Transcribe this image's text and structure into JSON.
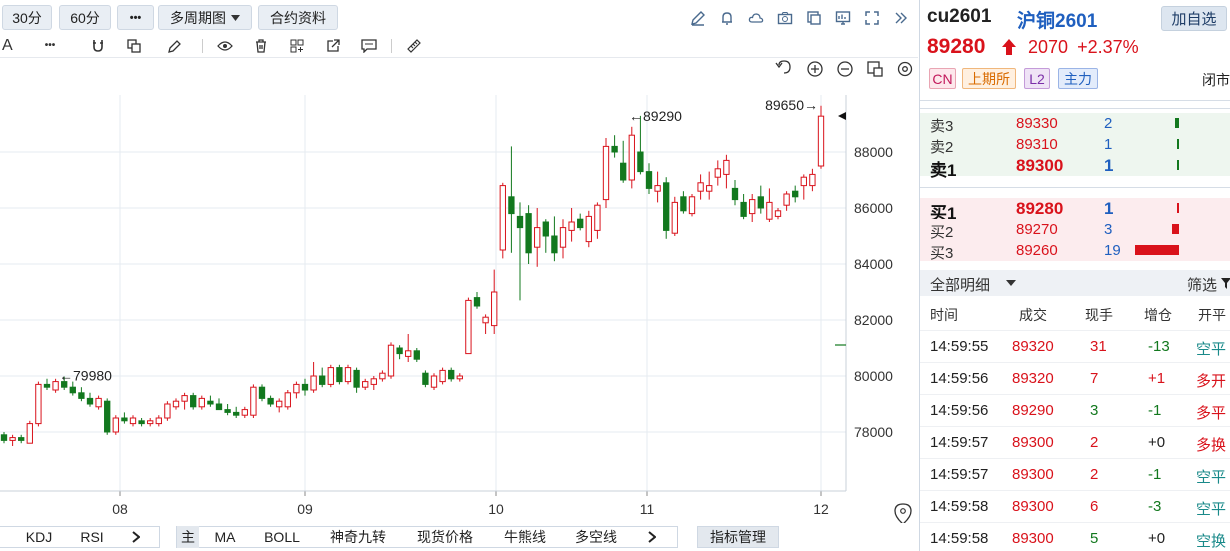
{
  "toolbar": {
    "period_30": "30分",
    "period_60": "60分",
    "more": "•••",
    "multi_period": "多周期图",
    "contract_info": "合约资料"
  },
  "chart": {
    "y_ticks": [
      "88000",
      "86000",
      "84000",
      "82000",
      "80000",
      "78000"
    ],
    "x_ticks": [
      "08",
      "09",
      "10",
      "11",
      "12"
    ],
    "annotations": {
      "high_left": "←79980",
      "high_mid": "←89290",
      "high_right": "89650→"
    }
  },
  "chart_data": {
    "type": "candlestick",
    "x_labels": [
      "08",
      "09",
      "10",
      "11",
      "12"
    ],
    "y_ticks": [
      78000,
      80000,
      82000,
      84000,
      86000,
      88000
    ],
    "ylim": [
      76500,
      90300
    ],
    "annotations": [
      {
        "text": "←79980",
        "value": 79980
      },
      {
        "text": "←89290",
        "value": 89290
      },
      {
        "text": "89650→",
        "value": 89650
      }
    ],
    "candles": [
      {
        "o": 77900,
        "h": 78000,
        "l": 77600,
        "c": 77700
      },
      {
        "o": 77700,
        "h": 77900,
        "l": 77500,
        "c": 77800
      },
      {
        "o": 77800,
        "h": 77900,
        "l": 77600,
        "c": 77700
      },
      {
        "o": 77600,
        "h": 78400,
        "l": 77600,
        "c": 78300
      },
      {
        "o": 78300,
        "h": 79800,
        "l": 78200,
        "c": 79700
      },
      {
        "o": 79700,
        "h": 79900,
        "l": 79500,
        "c": 79600
      },
      {
        "o": 79500,
        "h": 79900,
        "l": 79400,
        "c": 79800
      },
      {
        "o": 79800,
        "h": 79980,
        "l": 79500,
        "c": 79600
      },
      {
        "o": 79600,
        "h": 79800,
        "l": 79300,
        "c": 79400
      },
      {
        "o": 79400,
        "h": 79600,
        "l": 79100,
        "c": 79200
      },
      {
        "o": 79200,
        "h": 79400,
        "l": 78900,
        "c": 79000
      },
      {
        "o": 78900,
        "h": 79300,
        "l": 78800,
        "c": 79200
      },
      {
        "o": 79100,
        "h": 79200,
        "l": 77900,
        "c": 78000
      },
      {
        "o": 78000,
        "h": 78600,
        "l": 77900,
        "c": 78500
      },
      {
        "o": 78500,
        "h": 78700,
        "l": 78300,
        "c": 78400
      },
      {
        "o": 78300,
        "h": 78600,
        "l": 78200,
        "c": 78500
      },
      {
        "o": 78400,
        "h": 78500,
        "l": 78200,
        "c": 78300
      },
      {
        "o": 78300,
        "h": 78500,
        "l": 78200,
        "c": 78400
      },
      {
        "o": 78300,
        "h": 78600,
        "l": 78200,
        "c": 78500
      },
      {
        "o": 78500,
        "h": 79100,
        "l": 78400,
        "c": 79000
      },
      {
        "o": 78900,
        "h": 79200,
        "l": 78800,
        "c": 79100
      },
      {
        "o": 79100,
        "h": 79400,
        "l": 78800,
        "c": 79300
      },
      {
        "o": 79300,
        "h": 79400,
        "l": 78800,
        "c": 78900
      },
      {
        "o": 78900,
        "h": 79300,
        "l": 78800,
        "c": 79200
      },
      {
        "o": 79100,
        "h": 79300,
        "l": 78900,
        "c": 79000
      },
      {
        "o": 79000,
        "h": 79200,
        "l": 78800,
        "c": 78800
      },
      {
        "o": 78800,
        "h": 79000,
        "l": 78600,
        "c": 78700
      },
      {
        "o": 78700,
        "h": 78900,
        "l": 78500,
        "c": 78600
      },
      {
        "o": 78600,
        "h": 78900,
        "l": 78500,
        "c": 78800
      },
      {
        "o": 78600,
        "h": 79700,
        "l": 78500,
        "c": 79600
      },
      {
        "o": 79600,
        "h": 79700,
        "l": 79100,
        "c": 79200
      },
      {
        "o": 79200,
        "h": 79300,
        "l": 78900,
        "c": 79000
      },
      {
        "o": 78900,
        "h": 79200,
        "l": 78700,
        "c": 79100
      },
      {
        "o": 78900,
        "h": 79500,
        "l": 78800,
        "c": 79400
      },
      {
        "o": 79400,
        "h": 79800,
        "l": 79200,
        "c": 79700
      },
      {
        "o": 79700,
        "h": 79900,
        "l": 79300,
        "c": 79500
      },
      {
        "o": 79500,
        "h": 80500,
        "l": 79400,
        "c": 80000
      },
      {
        "o": 80000,
        "h": 80300,
        "l": 79600,
        "c": 79700
      },
      {
        "o": 79700,
        "h": 80400,
        "l": 79600,
        "c": 80300
      },
      {
        "o": 80300,
        "h": 80400,
        "l": 79700,
        "c": 79800
      },
      {
        "o": 79800,
        "h": 80400,
        "l": 79700,
        "c": 80300
      },
      {
        "o": 80200,
        "h": 80300,
        "l": 79400,
        "c": 79600
      },
      {
        "o": 79600,
        "h": 79900,
        "l": 79500,
        "c": 79800
      },
      {
        "o": 79700,
        "h": 80000,
        "l": 79500,
        "c": 79900
      },
      {
        "o": 79900,
        "h": 80200,
        "l": 79800,
        "c": 80100
      },
      {
        "o": 80000,
        "h": 81200,
        "l": 79900,
        "c": 81100
      },
      {
        "o": 81000,
        "h": 81100,
        "l": 80600,
        "c": 80800
      },
      {
        "o": 80700,
        "h": 81500,
        "l": 80500,
        "c": 80900
      },
      {
        "o": 80900,
        "h": 81000,
        "l": 80500,
        "c": 80600
      },
      {
        "o": 80100,
        "h": 80200,
        "l": 79600,
        "c": 79700
      },
      {
        "o": 79600,
        "h": 80100,
        "l": 79500,
        "c": 80000
      },
      {
        "o": 79800,
        "h": 80300,
        "l": 79700,
        "c": 80200
      },
      {
        "o": 80200,
        "h": 80300,
        "l": 79800,
        "c": 79900
      },
      {
        "o": 79900,
        "h": 80100,
        "l": 79800,
        "c": 80000
      },
      {
        "o": 80800,
        "h": 82800,
        "l": 80800,
        "c": 82700
      },
      {
        "o": 82800,
        "h": 83000,
        "l": 82400,
        "c": 82500
      },
      {
        "o": 81900,
        "h": 82200,
        "l": 81500,
        "c": 82100
      },
      {
        "o": 81800,
        "h": 83800,
        "l": 81500,
        "c": 83000
      },
      {
        "o": 84500,
        "h": 86900,
        "l": 84200,
        "c": 86800
      },
      {
        "o": 86400,
        "h": 88200,
        "l": 84400,
        "c": 85800
      },
      {
        "o": 85700,
        "h": 86200,
        "l": 82700,
        "c": 85300
      },
      {
        "o": 85800,
        "h": 86100,
        "l": 84000,
        "c": 84400
      },
      {
        "o": 84600,
        "h": 86000,
        "l": 83900,
        "c": 85300
      },
      {
        "o": 85500,
        "h": 85600,
        "l": 84400,
        "c": 85000
      },
      {
        "o": 85000,
        "h": 85700,
        "l": 84100,
        "c": 84400
      },
      {
        "o": 84600,
        "h": 85600,
        "l": 84200,
        "c": 85300
      },
      {
        "o": 85200,
        "h": 86000,
        "l": 84800,
        "c": 85500
      },
      {
        "o": 85600,
        "h": 85800,
        "l": 85200,
        "c": 85300
      },
      {
        "o": 84800,
        "h": 85900,
        "l": 84600,
        "c": 85700
      },
      {
        "o": 85200,
        "h": 86200,
        "l": 84900,
        "c": 86100
      },
      {
        "o": 86300,
        "h": 88500,
        "l": 86000,
        "c": 88200
      },
      {
        "o": 88200,
        "h": 88600,
        "l": 87800,
        "c": 88000
      },
      {
        "o": 87600,
        "h": 88400,
        "l": 86900,
        "c": 87000
      },
      {
        "o": 87000,
        "h": 88900,
        "l": 86700,
        "c": 88600
      },
      {
        "o": 88000,
        "h": 89290,
        "l": 87200,
        "c": 87300
      },
      {
        "o": 87300,
        "h": 87600,
        "l": 86500,
        "c": 86700
      },
      {
        "o": 86600,
        "h": 87300,
        "l": 86200,
        "c": 86800
      },
      {
        "o": 86900,
        "h": 87100,
        "l": 84900,
        "c": 85200
      },
      {
        "o": 85100,
        "h": 86400,
        "l": 85000,
        "c": 86200
      },
      {
        "o": 86400,
        "h": 86600,
        "l": 85800,
        "c": 85900
      },
      {
        "o": 85800,
        "h": 86500,
        "l": 85700,
        "c": 86400
      },
      {
        "o": 86600,
        "h": 87200,
        "l": 86300,
        "c": 86900
      },
      {
        "o": 86600,
        "h": 87300,
        "l": 86300,
        "c": 86800
      },
      {
        "o": 87100,
        "h": 87700,
        "l": 86800,
        "c": 87400
      },
      {
        "o": 87200,
        "h": 87900,
        "l": 86700,
        "c": 87700
      },
      {
        "o": 86700,
        "h": 87000,
        "l": 86100,
        "c": 86300
      },
      {
        "o": 86200,
        "h": 86500,
        "l": 85600,
        "c": 85700
      },
      {
        "o": 85800,
        "h": 86500,
        "l": 85500,
        "c": 86300
      },
      {
        "o": 86400,
        "h": 86800,
        "l": 85800,
        "c": 86000
      },
      {
        "o": 85600,
        "h": 86700,
        "l": 85500,
        "c": 86200
      },
      {
        "o": 85700,
        "h": 86000,
        "l": 85600,
        "c": 85900
      },
      {
        "o": 86100,
        "h": 86600,
        "l": 85900,
        "c": 86500
      },
      {
        "o": 86600,
        "h": 86800,
        "l": 86200,
        "c": 86400
      },
      {
        "o": 86800,
        "h": 87200,
        "l": 86300,
        "c": 87100
      },
      {
        "o": 86800,
        "h": 87400,
        "l": 86600,
        "c": 87200
      },
      {
        "o": 87500,
        "h": 89650,
        "l": 87400,
        "c": 89280
      }
    ]
  },
  "tb2_labels": {
    "text_tool": "A",
    "dots": "•••"
  },
  "bottom": {
    "kdj": "KDJ",
    "rsi": "RSI",
    "main": "主",
    "ma": "MA",
    "boll": "BOLL",
    "shenqi": "神奇九转",
    "spot": "现货价格",
    "bull": "牛熊线",
    "ls": "多空线",
    "indicator_mgr": "指标管理"
  },
  "quote": {
    "code": "cu2601",
    "name": "沪铜2601",
    "add_watch": "加自选",
    "last": "89280",
    "change": "2070",
    "change_pct": "+2.37%",
    "tags": [
      "CN",
      "上期所",
      "L2",
      "主力"
    ],
    "status": "闭市",
    "asks": [
      {
        "label": "卖3",
        "price": "89330",
        "vol": "2",
        "bar": 0.1
      },
      {
        "label": "卖2",
        "price": "89310",
        "vol": "1",
        "bar": 0.05
      },
      {
        "label": "卖1",
        "price": "89300",
        "vol": "1",
        "bar": 0.05
      }
    ],
    "bids": [
      {
        "label": "买1",
        "price": "89280",
        "vol": "1",
        "bar": 0.05
      },
      {
        "label": "买2",
        "price": "89270",
        "vol": "3",
        "bar": 0.16
      },
      {
        "label": "买3",
        "price": "89260",
        "vol": "19",
        "bar": 1.0
      }
    ]
  },
  "detail": {
    "title": "全部明细",
    "filter": "筛选",
    "cols": [
      "时间",
      "成交",
      "现手",
      "增仓",
      "开平"
    ],
    "rows": [
      {
        "time": "14:59:55",
        "price": "89320",
        "qty": "31",
        "chg": "-13",
        "type": "空平"
      },
      {
        "time": "14:59:56",
        "price": "89320",
        "qty": "7",
        "chg": "+1",
        "type": "多开"
      },
      {
        "time": "14:59:56",
        "price": "89290",
        "qty": "3",
        "chg": "-1",
        "type": "多平"
      },
      {
        "time": "14:59:57",
        "price": "89300",
        "qty": "2",
        "chg": "+0",
        "type": "多换"
      },
      {
        "time": "14:59:57",
        "price": "89300",
        "qty": "2",
        "chg": "-1",
        "type": "空平"
      },
      {
        "time": "14:59:58",
        "price": "89300",
        "qty": "6",
        "chg": "-3",
        "type": "空平"
      },
      {
        "time": "14:59:58",
        "price": "89300",
        "qty": "5",
        "chg": "+0",
        "type": "空换"
      }
    ]
  },
  "colors": {
    "up": "#d9121b",
    "down": "#12781e",
    "blue": "#1f5fbf"
  }
}
